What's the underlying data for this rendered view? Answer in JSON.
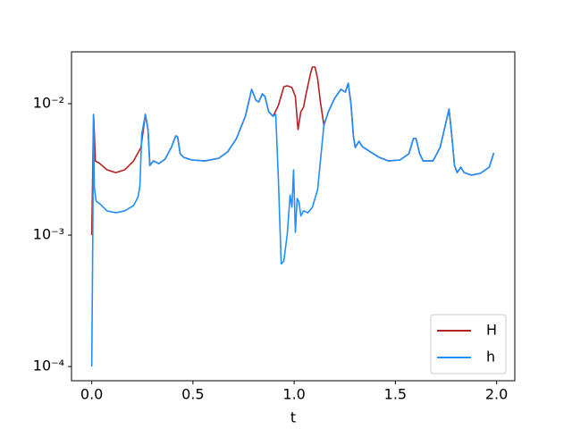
{
  "chart_data": {
    "type": "line",
    "xlabel": "t",
    "yscale": "log",
    "legend": "lower right",
    "grid": false,
    "xlim": [
      -0.1,
      2.09
    ],
    "ylim": [
      7.8e-05,
      0.0248
    ],
    "xticks": [
      {
        "value": 0,
        "label": "0.0"
      },
      0.5,
      {
        "value": 1,
        "label": "1.0"
      },
      1.5,
      {
        "value": 2,
        "label": "2.0"
      }
    ],
    "yticks": [
      {
        "value": 0.0001,
        "label": "10⁻⁴"
      },
      {
        "value": 0.001,
        "label": "10⁻³"
      },
      {
        "value": 0.01,
        "label": "10⁻²"
      }
    ],
    "series": [
      {
        "name": "H",
        "color": "#b22222",
        "x": [
          0,
          0.009,
          0.018,
          0.04,
          0.075,
          0.119,
          0.163,
          0.207,
          0.243,
          0.265,
          0.278,
          0.287,
          0.305,
          0.331,
          0.362,
          0.393,
          0.415,
          0.424,
          0.437,
          0.455,
          0.494,
          0.56,
          0.627,
          0.671,
          0.715,
          0.759,
          0.79,
          0.812,
          0.825,
          0.843,
          0.856,
          0.874,
          0.896,
          0.922,
          0.949,
          0.966,
          0.989,
          1.006,
          1.019,
          1.033,
          1.046,
          1.059,
          1.081,
          1.09,
          1.103,
          1.116,
          1.13,
          1.147,
          1.169,
          1.2,
          1.231,
          1.253,
          1.267,
          1.28,
          1.293,
          1.302,
          1.32,
          1.337,
          1.377,
          1.421,
          1.465,
          1.523,
          1.567,
          1.589,
          1.602,
          1.62,
          1.637,
          1.686,
          1.721,
          1.752,
          1.765,
          1.778,
          1.792,
          1.805,
          1.823,
          1.84,
          1.876,
          1.92,
          1.964,
          1.986
        ],
        "values": [
          0.001,
          0.00829,
          0.00367,
          0.0035,
          0.00314,
          0.00299,
          0.00314,
          0.00367,
          0.00464,
          0.00829,
          0.00635,
          0.00339,
          0.00367,
          0.0035,
          0.00378,
          0.00464,
          0.00569,
          0.0056,
          0.00416,
          0.0039,
          0.00373,
          0.00367,
          0.00384,
          0.00429,
          0.00543,
          0.00803,
          0.01285,
          0.0106,
          0.0103,
          0.01188,
          0.01133,
          0.00868,
          0.00803,
          0.00969,
          0.01346,
          0.01368,
          0.01326,
          0.01133,
          0.00635,
          0.00868,
          0.00939,
          0.01188,
          0.017,
          0.019,
          0.019,
          0.0155,
          0.0102,
          0.00687,
          0.00868,
          0.011,
          0.01285,
          0.01226,
          0.0143,
          0.0102,
          0.0056,
          0.00464,
          0.00518,
          0.00471,
          0.00429,
          0.0039,
          0.00367,
          0.00373,
          0.00416,
          0.00543,
          0.00543,
          0.00416,
          0.00367,
          0.00367,
          0.00464,
          0.00743,
          0.0091,
          0.00587,
          0.00339,
          0.00299,
          0.00329,
          0.00299,
          0.00286,
          0.00295,
          0.00329,
          0.00422
        ]
      },
      {
        "name": "h",
        "color": "#1e90ff",
        "x": [
          0,
          0.004,
          0.009,
          0.013,
          0.022,
          0.04,
          0.075,
          0.119,
          0.163,
          0.207,
          0.229,
          0.238,
          0.247,
          0.265,
          0.278,
          0.287,
          0.305,
          0.331,
          0.362,
          0.393,
          0.415,
          0.424,
          0.437,
          0.455,
          0.494,
          0.56,
          0.627,
          0.671,
          0.715,
          0.759,
          0.79,
          0.812,
          0.825,
          0.843,
          0.856,
          0.874,
          0.896,
          0.909,
          0.922,
          0.936,
          0.949,
          0.966,
          0.98,
          0.989,
          0.997,
          1.006,
          1.015,
          1.024,
          1.033,
          1.046,
          1.068,
          1.09,
          1.116,
          1.134,
          1.147,
          1.169,
          1.2,
          1.231,
          1.253,
          1.267,
          1.28,
          1.293,
          1.302,
          1.32,
          1.337,
          1.377,
          1.421,
          1.465,
          1.523,
          1.567,
          1.589,
          1.602,
          1.62,
          1.637,
          1.686,
          1.721,
          1.752,
          1.765,
          1.778,
          1.792,
          1.805,
          1.823,
          1.84,
          1.876,
          1.92,
          1.964,
          1.986
        ],
        "values": [
          0.0001,
          0.000561,
          0.00829,
          0.00229,
          0.00181,
          0.00173,
          0.00153,
          0.00148,
          0.00153,
          0.00168,
          0.00196,
          0.00237,
          0.00587,
          0.00829,
          0.00635,
          0.00339,
          0.00367,
          0.0035,
          0.00378,
          0.00464,
          0.00569,
          0.0056,
          0.00416,
          0.0039,
          0.00373,
          0.00367,
          0.00384,
          0.00429,
          0.00543,
          0.00803,
          0.01285,
          0.0106,
          0.0103,
          0.01188,
          0.01133,
          0.00868,
          0.00803,
          0.00829,
          0.00268,
          0.000604,
          0.000635,
          0.00102,
          0.00202,
          0.00163,
          0.00314,
          0.00105,
          0.0019,
          0.00178,
          0.0014,
          0.00153,
          0.00148,
          0.00163,
          0.00222,
          0.00429,
          0.00687,
          0.00868,
          0.011,
          0.01285,
          0.01226,
          0.0143,
          0.0102,
          0.0056,
          0.00464,
          0.00518,
          0.00471,
          0.00429,
          0.0039,
          0.00367,
          0.00373,
          0.00416,
          0.00543,
          0.00543,
          0.00416,
          0.00367,
          0.00367,
          0.00464,
          0.00743,
          0.0091,
          0.00587,
          0.00339,
          0.00299,
          0.00329,
          0.00299,
          0.00286,
          0.00295,
          0.00329,
          0.00422
        ]
      }
    ]
  }
}
